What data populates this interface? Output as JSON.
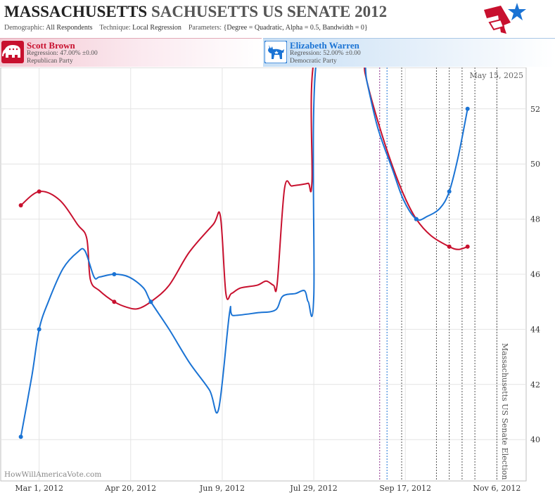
{
  "header": {
    "title_state": "MASSACHUSETTS",
    "title_rest": "SACHUSETTS US SENATE 2012",
    "demographic_label": "Demographic:",
    "demographic_value": "All Respondents",
    "technique_label": "Technique:",
    "technique_value": "Local Regression",
    "parameters_label": "Parameters:",
    "parameters_value": "{Degree = Quadratic, Alpha = 0.5, Bandwidth = 0}"
  },
  "candidates": {
    "rep": {
      "name": "Scott Brown",
      "regression": "Regression: 47.00% ±0.00",
      "party": "Republican Party",
      "color": "#c8102e"
    },
    "dem": {
      "name": "Elizabeth Warren",
      "regression": "Regression: 52.00% ±0.00",
      "party": "Democratic Party",
      "color": "#1a73d4"
    }
  },
  "chart_data": {
    "type": "line",
    "x_axis": {
      "type": "date",
      "range": [
        "2012-02-09",
        "2012-11-22"
      ],
      "ticks": [
        "Mar 1, 2012",
        "Apr 20, 2012",
        "Jun 9, 2012",
        "Jul 29, 2012",
        "Sep 17, 2012",
        "Nov 6, 2012"
      ]
    },
    "y_axis": {
      "position": "right",
      "range": [
        38.5,
        53.5
      ],
      "ticks": [
        40,
        42,
        44,
        46,
        48,
        50,
        52
      ]
    },
    "grid": true,
    "date_label": "May 15, 2025",
    "event_label": "Massachusetts US Senate Election",
    "watermark": "HowWillAmericaVote.com",
    "event_lines": [
      {
        "date": "2012-09-03",
        "color": "#8a2c8a"
      },
      {
        "date": "2012-09-07",
        "color": "#1a73d4"
      },
      {
        "date": "2012-09-15",
        "color": "#555555"
      },
      {
        "date": "2012-10-04",
        "color": "#555555"
      },
      {
        "date": "2012-10-11",
        "color": "#555555"
      },
      {
        "date": "2012-10-18",
        "color": "#555555"
      },
      {
        "date": "2012-10-25",
        "color": "#555555"
      },
      {
        "date": "2012-11-06",
        "color": "#555555"
      }
    ],
    "series": [
      {
        "name": "Scott Brown",
        "color": "#c8102e",
        "points": [
          [
            "2012-02-20",
            48.5
          ],
          [
            "2012-03-01",
            49.0
          ],
          [
            "2012-04-11",
            45.0
          ],
          [
            "2012-05-01",
            45.0
          ],
          [
            "2012-09-23",
            48.0
          ],
          [
            "2012-10-11",
            47.0
          ],
          [
            "2012-10-21",
            47.0
          ]
        ],
        "line": [
          [
            "2012-02-20",
            48.5
          ],
          [
            "2012-03-01",
            49.0
          ],
          [
            "2012-03-12",
            48.7
          ],
          [
            "2012-03-22",
            47.8
          ],
          [
            "2012-03-27",
            47.3
          ],
          [
            "2012-03-29",
            45.8
          ],
          [
            "2012-04-03",
            45.4
          ],
          [
            "2012-04-11",
            45.0
          ],
          [
            "2012-04-18",
            44.8
          ],
          [
            "2012-04-24",
            44.75
          ],
          [
            "2012-05-01",
            45.0
          ],
          [
            "2012-05-11",
            45.6
          ],
          [
            "2012-05-22",
            46.8
          ],
          [
            "2012-06-04",
            47.8
          ],
          [
            "2012-06-08",
            48.1
          ],
          [
            "2012-06-11",
            45.3
          ],
          [
            "2012-06-14",
            45.3
          ],
          [
            "2012-06-19",
            45.5
          ],
          [
            "2012-06-28",
            45.6
          ],
          [
            "2012-07-03",
            45.75
          ],
          [
            "2012-07-07",
            45.6
          ],
          [
            "2012-07-09",
            45.65
          ],
          [
            "2012-07-13",
            49.1
          ],
          [
            "2012-07-17",
            49.2
          ],
          [
            "2012-07-22",
            49.25
          ],
          [
            "2012-07-26",
            49.3
          ],
          [
            "2012-07-28",
            49.35
          ],
          [
            "2012-07-30",
            54.0
          ],
          [
            "2012-08-23",
            54.5
          ],
          [
            "2012-08-26",
            53.3
          ],
          [
            "2012-08-31",
            52.0
          ],
          [
            "2012-09-08",
            50.3
          ],
          [
            "2012-09-16",
            48.9
          ],
          [
            "2012-09-23",
            48.0
          ],
          [
            "2012-10-01",
            47.4
          ],
          [
            "2012-10-11",
            47.0
          ],
          [
            "2012-10-16",
            46.9
          ],
          [
            "2012-10-21",
            47.0
          ]
        ]
      },
      {
        "name": "Elizabeth Warren",
        "color": "#1a73d4",
        "points": [
          [
            "2012-02-20",
            40.1
          ],
          [
            "2012-03-01",
            44.0
          ],
          [
            "2012-04-11",
            46.0
          ],
          [
            "2012-05-01",
            45.0
          ],
          [
            "2012-09-23",
            48.0
          ],
          [
            "2012-10-11",
            49.0
          ],
          [
            "2012-10-21",
            52.0
          ]
        ],
        "line": [
          [
            "2012-02-20",
            40.1
          ],
          [
            "2012-02-26",
            42.3
          ],
          [
            "2012-03-01",
            44.0
          ],
          [
            "2012-03-06",
            45.0
          ],
          [
            "2012-03-14",
            46.2
          ],
          [
            "2012-03-22",
            46.8
          ],
          [
            "2012-03-26",
            46.85
          ],
          [
            "2012-03-31",
            45.9
          ],
          [
            "2012-04-03",
            45.9
          ],
          [
            "2012-04-11",
            46.0
          ],
          [
            "2012-04-19",
            45.9
          ],
          [
            "2012-04-27",
            45.5
          ],
          [
            "2012-05-01",
            45.0
          ],
          [
            "2012-05-11",
            44.0
          ],
          [
            "2012-05-22",
            42.8
          ],
          [
            "2012-06-02",
            41.8
          ],
          [
            "2012-06-07",
            41.1
          ],
          [
            "2012-06-13",
            44.6
          ],
          [
            "2012-06-15",
            44.5
          ],
          [
            "2012-06-28",
            44.6
          ],
          [
            "2012-07-08",
            44.7
          ],
          [
            "2012-07-12",
            45.2
          ],
          [
            "2012-07-19",
            45.3
          ],
          [
            "2012-07-24",
            45.4
          ],
          [
            "2012-07-26",
            45.0
          ],
          [
            "2012-07-29",
            45.2
          ],
          [
            "2012-07-31",
            54.0
          ],
          [
            "2012-08-23",
            54.3
          ],
          [
            "2012-08-27",
            53.0
          ],
          [
            "2012-09-02",
            51.3
          ],
          [
            "2012-09-10",
            49.8
          ],
          [
            "2012-09-16",
            48.7
          ],
          [
            "2012-09-23",
            48.0
          ],
          [
            "2012-09-29",
            48.1
          ],
          [
            "2012-10-06",
            48.4
          ],
          [
            "2012-10-11",
            49.0
          ],
          [
            "2012-10-16",
            50.3
          ],
          [
            "2012-10-21",
            52.0
          ]
        ]
      }
    ]
  }
}
